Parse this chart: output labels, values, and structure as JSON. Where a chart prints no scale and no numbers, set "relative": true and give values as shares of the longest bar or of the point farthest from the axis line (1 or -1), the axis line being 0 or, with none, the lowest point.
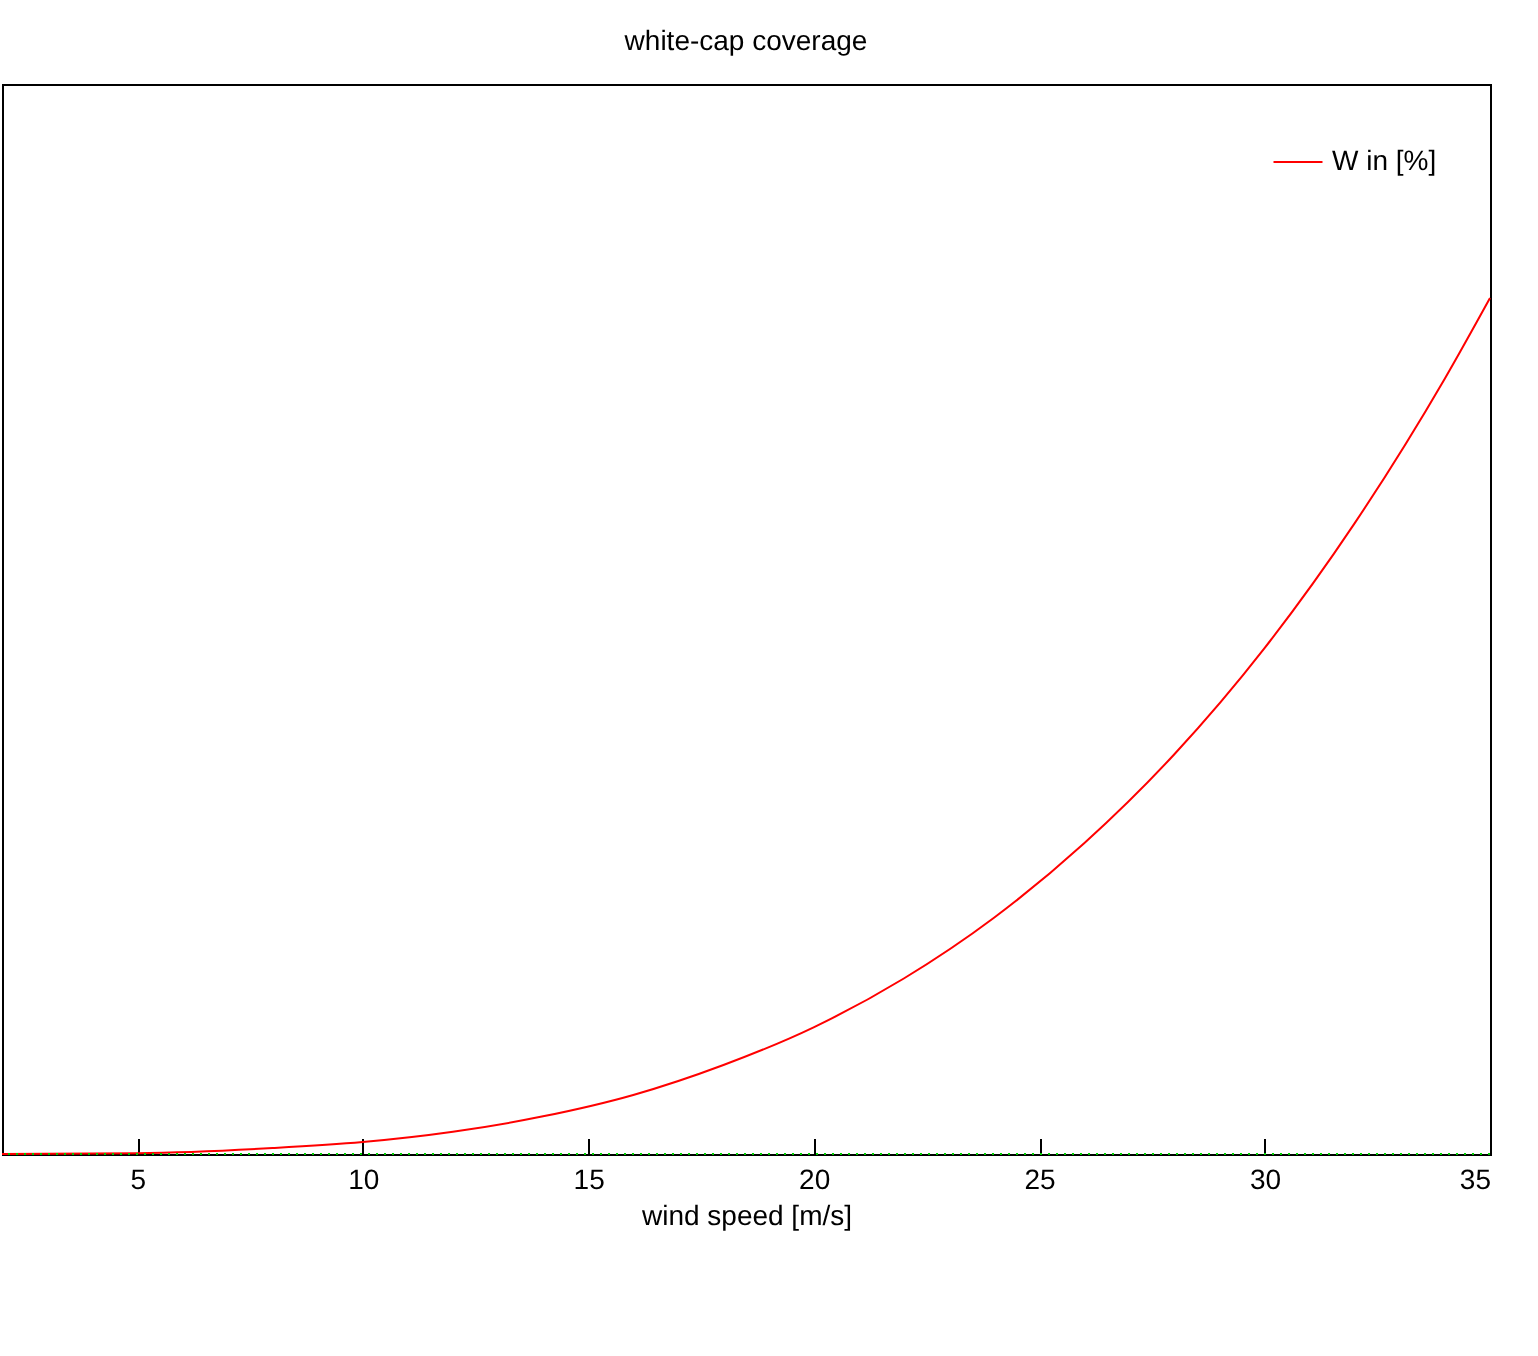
{
  "chart_data": {
    "type": "line",
    "title": "white-cap coverage",
    "xlabel": "wind speed [m/s]",
    "relative": true,
    "tick_labels": "x",
    "xlim": [
      2,
      35
    ],
    "xticks": [
      5,
      10,
      15,
      20,
      25,
      30,
      35
    ],
    "x": [
      2,
      5,
      8,
      10,
      12,
      14,
      16,
      18,
      20,
      22,
      24,
      26,
      28,
      30,
      32,
      34,
      35
    ],
    "series": [
      {
        "name": "W in [%]",
        "color": "#ff0000",
        "values": [
          0,
          0.001,
          0.007,
          0.014,
          0.026,
          0.044,
          0.069,
          0.104,
          0.148,
          0.205,
          0.276,
          0.363,
          0.467,
          0.591,
          0.737,
          0.906,
          1
        ]
      }
    ],
    "ref_lines": [
      {
        "axis": "y",
        "value": 0,
        "color": "#00cc00",
        "line_style": "dotted"
      }
    ],
    "grid": false,
    "legend": "top right",
    "line_style": "solid",
    "marker": "none"
  }
}
